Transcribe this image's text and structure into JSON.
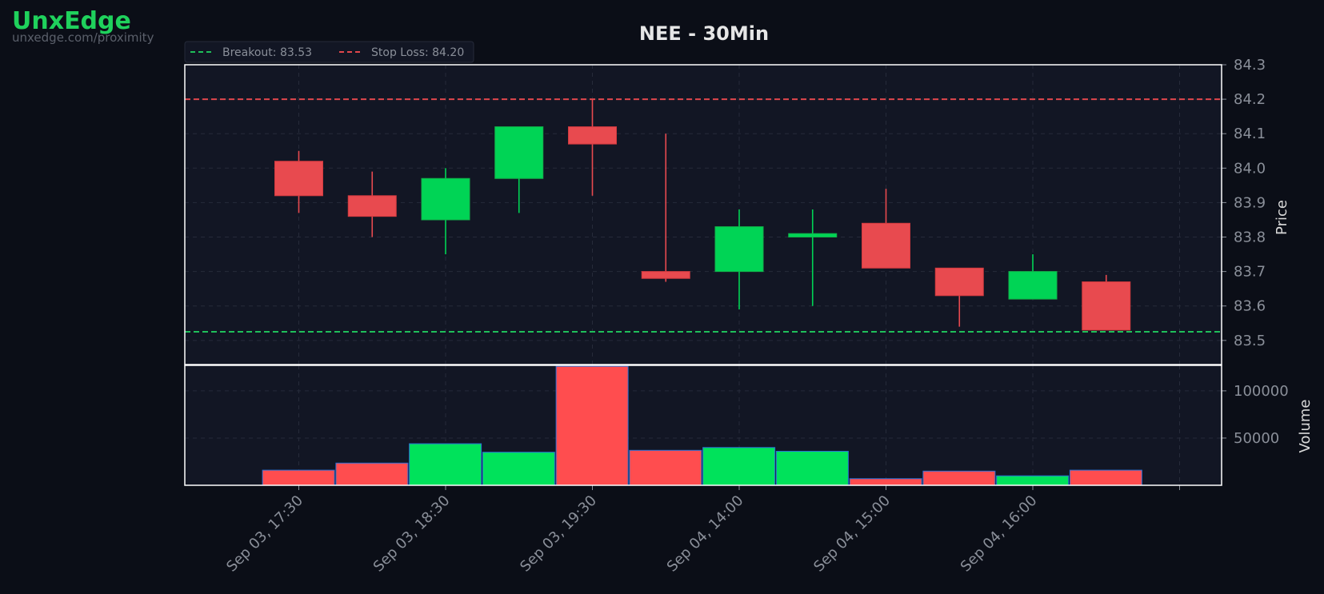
{
  "brand": {
    "name": "UnxEdge",
    "url": "unxedge.com/proximity",
    "color": "#1fd15c"
  },
  "colors": {
    "background": "#0b0e17",
    "panel": "#121624",
    "grid": "#262b3a",
    "up": "#00d455",
    "down": "#e84a4f",
    "up_volume": "#00e25b",
    "down_volume": "#ff4d4f",
    "breakout_line": "#1fbf5a",
    "stoploss_line": "#e0474c",
    "frame": "#ffffff"
  },
  "chart_data": {
    "type": "candlestick",
    "title": "NEE - 30Min",
    "ylabel": "Price",
    "volume_label": "Volume",
    "ylim": [
      83.43,
      84.3
    ],
    "yticks": [
      "83.5",
      "83.6",
      "83.7",
      "83.8",
      "83.9",
      "84.0",
      "84.1",
      "84.2",
      "84.3"
    ],
    "volume_ylim": [
      0,
      127000
    ],
    "volume_ticks": [
      "50000",
      "100000"
    ],
    "xticks": [
      {
        "label": "Sep 03, 17:30",
        "index": 0
      },
      {
        "label": "Sep 03, 18:30",
        "index": 2
      },
      {
        "label": "Sep 03, 19:30",
        "index": 4
      },
      {
        "label": "Sep 04, 14:00",
        "index": 6
      },
      {
        "label": "Sep 04, 15:00",
        "index": 8
      },
      {
        "label": "Sep 04, 16:00",
        "index": 10
      },
      {
        "label": "",
        "index": 12
      }
    ],
    "candles": [
      {
        "open": 84.02,
        "high": 84.05,
        "low": 83.87,
        "close": 83.92,
        "volume": 16000
      },
      {
        "open": 83.92,
        "high": 83.99,
        "low": 83.8,
        "close": 83.86,
        "volume": 23500
      },
      {
        "open": 83.85,
        "high": 84.0,
        "low": 83.75,
        "close": 83.97,
        "volume": 44000
      },
      {
        "open": 83.97,
        "high": 84.12,
        "low": 83.87,
        "close": 84.12,
        "volume": 35000
      },
      {
        "open": 84.12,
        "high": 84.2,
        "low": 83.92,
        "close": 84.07,
        "volume": 126000
      },
      {
        "open": 83.7,
        "high": 84.1,
        "low": 83.67,
        "close": 83.68,
        "volume": 37000
      },
      {
        "open": 83.7,
        "high": 83.88,
        "low": 83.59,
        "close": 83.83,
        "volume": 40000
      },
      {
        "open": 83.8,
        "high": 83.88,
        "low": 83.6,
        "close": 83.81,
        "volume": 36000
      },
      {
        "open": 83.84,
        "high": 83.94,
        "low": 83.71,
        "close": 83.71,
        "volume": 7000
      },
      {
        "open": 83.71,
        "high": 83.71,
        "low": 83.54,
        "close": 83.63,
        "volume": 15000
      },
      {
        "open": 83.62,
        "high": 83.75,
        "low": 83.62,
        "close": 83.7,
        "volume": 10000
      },
      {
        "open": 83.67,
        "high": 83.69,
        "low": 83.53,
        "close": 83.53,
        "volume": 16000
      }
    ],
    "lines": [
      {
        "name": "Breakout: 83.53",
        "value": 83.525,
        "color": "#1fbf5a"
      },
      {
        "name": "Stop Loss: 84.20",
        "value": 84.2,
        "color": "#e0474c"
      }
    ],
    "grid": true,
    "legend_position": "top-left"
  }
}
